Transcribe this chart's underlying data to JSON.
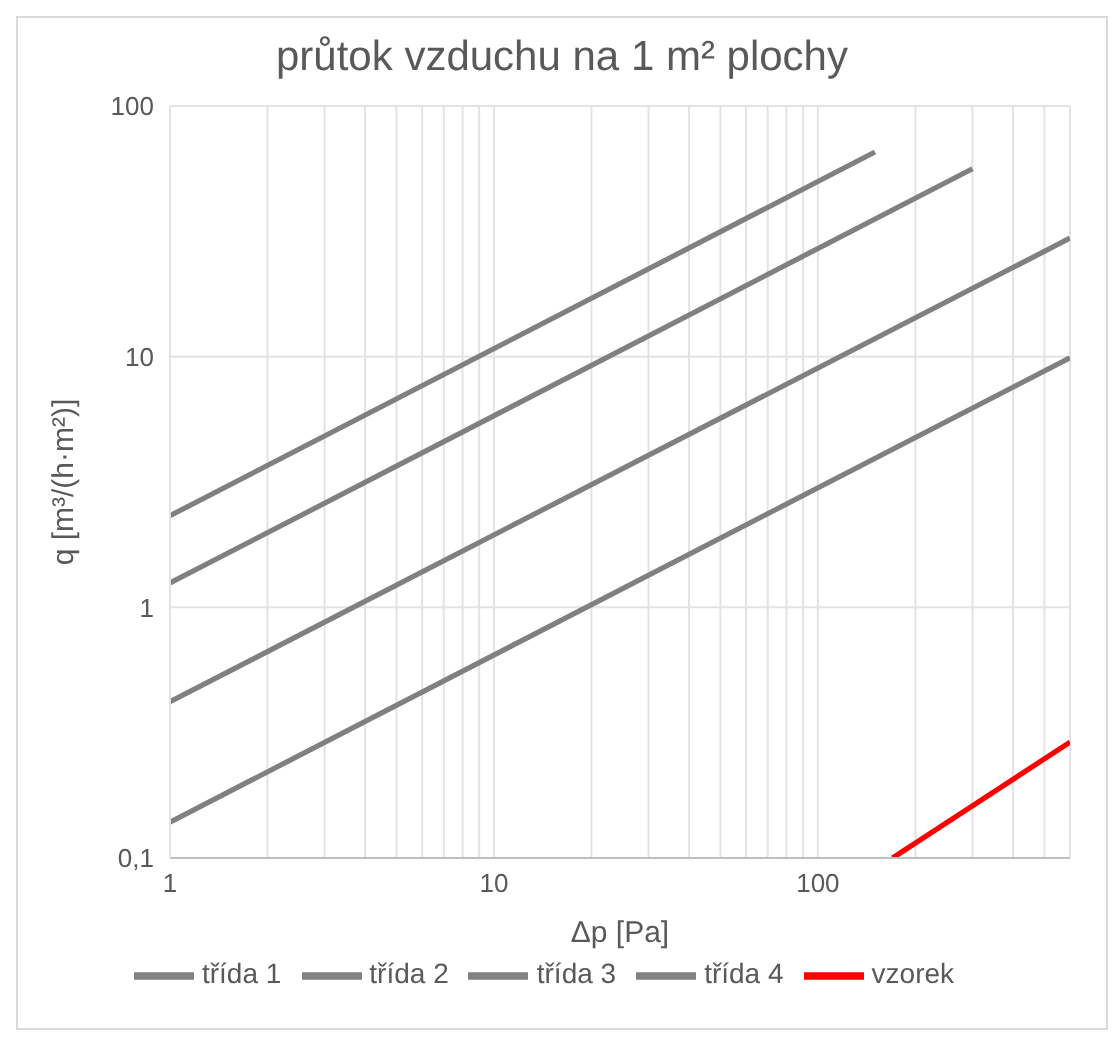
{
  "chart_data": {
    "type": "line",
    "title": "průtok vzduchu na 1 m² plochy",
    "xlabel": "Δp [Pa]",
    "ylabel": "q [m³/(h·m²)]",
    "log": "xy",
    "xlim": [
      1,
      600
    ],
    "ylim": [
      0.1,
      100
    ],
    "xticks": [
      1,
      {
        "value": 2,
        "label": null
      },
      {
        "value": 3,
        "label": null
      },
      {
        "value": 4,
        "label": null
      },
      {
        "value": 5,
        "label": null
      },
      {
        "value": 6,
        "label": null
      },
      {
        "value": 7,
        "label": null
      },
      {
        "value": 8,
        "label": null
      },
      {
        "value": 9,
        "label": null
      },
      10,
      {
        "value": 20,
        "label": null
      },
      {
        "value": 30,
        "label": null
      },
      {
        "value": 40,
        "label": null
      },
      {
        "value": 50,
        "label": null
      },
      {
        "value": 60,
        "label": null
      },
      {
        "value": 70,
        "label": null
      },
      {
        "value": 80,
        "label": null
      },
      {
        "value": 90,
        "label": null
      },
      100,
      {
        "value": 200,
        "label": null
      },
      {
        "value": 300,
        "label": null
      },
      {
        "value": 400,
        "label": null
      },
      {
        "value": 500,
        "label": null
      },
      {
        "value": 600,
        "label": null
      }
    ],
    "yticks": [
      {
        "value": 0.1,
        "label": "0,1"
      },
      1,
      10,
      100
    ],
    "grid": true,
    "legend": "bottom",
    "marker": "none",
    "line_style": "solid",
    "series": [
      {
        "name": "vzorek",
        "color": "#ff0000",
        "x": [
          170,
          600
        ],
        "values": [
          0.1,
          0.29
        ]
      },
      {
        "name": "třída 1",
        "color": "#808080",
        "x": [
          1,
          150
        ],
        "values": [
          2.32,
          65.5
        ]
      },
      {
        "name": "třída 2",
        "color": "#808080",
        "x": [
          1,
          300
        ],
        "values": [
          1.25,
          56.2
        ]
      },
      {
        "name": "třída 3",
        "color": "#808080",
        "x": [
          1,
          600
        ],
        "values": [
          0.42,
          29.7
        ]
      },
      {
        "name": "třída 4",
        "color": "#808080",
        "x": [
          1,
          600
        ],
        "values": [
          0.139,
          9.9
        ]
      }
    ]
  }
}
